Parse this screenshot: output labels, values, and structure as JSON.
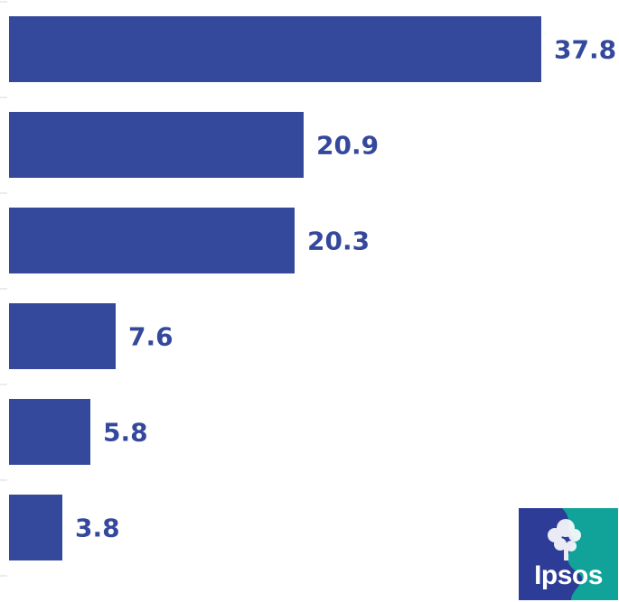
{
  "chart_data": {
    "type": "bar",
    "orientation": "horizontal",
    "categories": [
      "",
      "",
      "",
      "",
      "",
      ""
    ],
    "values": [
      37.8,
      20.9,
      20.3,
      7.6,
      5.8,
      3.8
    ],
    "value_labels": [
      "37.8",
      "20.9",
      "20.3",
      "7.6",
      "5.8",
      "3.8"
    ],
    "title": "",
    "xlabel": "",
    "ylabel": "",
    "xlim": [
      0,
      37.8
    ],
    "grid": false,
    "legend": "none"
  },
  "colors": {
    "bar": "#34489c",
    "label": "#34489c",
    "logo_blue": "#2d3c97",
    "logo_teal": "#11a39a",
    "tick": "#d8d8d8"
  },
  "logo": {
    "text": "Ipsos",
    "icon": "ipsos-tree-head-logo"
  }
}
